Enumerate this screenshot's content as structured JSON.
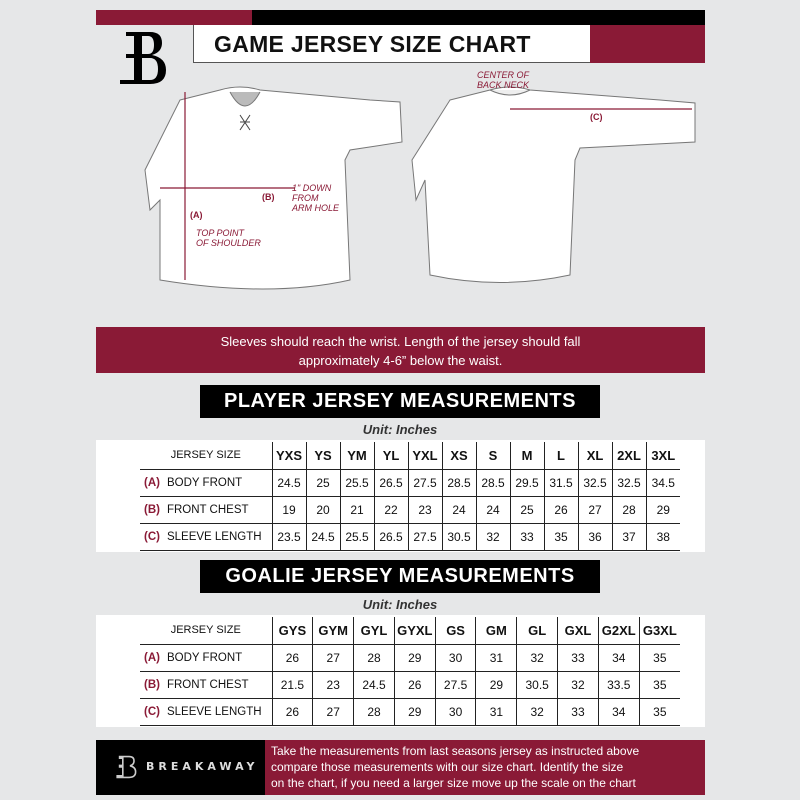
{
  "header": {
    "title": "GAME JERSEY SIZE CHART",
    "logo_letter": "B"
  },
  "diagram": {
    "center_back_neck": [
      "CENTER OF",
      "BACK NECK"
    ],
    "label_a": "(A)",
    "label_b": "(B)",
    "label_c": "(C)",
    "one_inch_down": [
      "1\" DOWN",
      "FROM",
      "ARM HOLE"
    ],
    "top_point": [
      "TOP POINT",
      "OF SHOULDER"
    ]
  },
  "instructions": [
    "Sleeves should reach the wrist. Length of the jersey should fall",
    "approximately 4-6” below the waist."
  ],
  "player": {
    "title": "PLAYER JERSEY MEASUREMENTS",
    "unit": "Unit: Inches",
    "size_header": "JERSEY SIZE",
    "sizes": [
      "YXS",
      "YS",
      "YM",
      "YL",
      "YXL",
      "XS",
      "S",
      "M",
      "L",
      "XL",
      "2XL",
      "3XL"
    ],
    "rows": [
      {
        "letter": "(A)",
        "label": "BODY FRONT",
        "values": [
          "24.5",
          "25",
          "25.5",
          "26.5",
          "27.5",
          "28.5",
          "28.5",
          "29.5",
          "31.5",
          "32.5",
          "32.5",
          "34.5"
        ]
      },
      {
        "letter": "(B)",
        "label": "FRONT CHEST",
        "values": [
          "19",
          "20",
          "21",
          "22",
          "23",
          "24",
          "24",
          "25",
          "26",
          "27",
          "28",
          "29"
        ]
      },
      {
        "letter": "(C)",
        "label": "SLEEVE LENGTH",
        "values": [
          "23.5",
          "24.5",
          "25.5",
          "26.5",
          "27.5",
          "30.5",
          "32",
          "33",
          "35",
          "36",
          "37",
          "38"
        ]
      }
    ]
  },
  "goalie": {
    "title": "GOALIE JERSEY MEASUREMENTS",
    "unit": "Unit: Inches",
    "size_header": "JERSEY SIZE",
    "sizes": [
      "GYS",
      "GYM",
      "GYL",
      "GYXL",
      "GS",
      "GM",
      "GL",
      "GXL",
      "G2XL",
      "G3XL"
    ],
    "rows": [
      {
        "letter": "(A)",
        "label": "BODY FRONT",
        "values": [
          "26",
          "27",
          "28",
          "29",
          "30",
          "31",
          "32",
          "33",
          "34",
          "35"
        ]
      },
      {
        "letter": "(B)",
        "label": "FRONT CHEST",
        "values": [
          "21.5",
          "23",
          "24.5",
          "26",
          "27.5",
          "29",
          "30.5",
          "32",
          "33.5",
          "35"
        ]
      },
      {
        "letter": "(C)",
        "label": "SLEEVE LENGTH",
        "values": [
          "26",
          "27",
          "28",
          "29",
          "30",
          "31",
          "32",
          "33",
          "34",
          "35"
        ]
      }
    ]
  },
  "footer": {
    "brand": "BREAKAWAY",
    "text": [
      "Take the measurements from last seasons jersey as instructed above",
      "compare those measurements  with our size chart. Identify the size",
      "on the chart, if you need a larger size move up the scale on the chart"
    ]
  },
  "colors": {
    "accent": "#8a1a36",
    "background": "#e6e7e8"
  }
}
